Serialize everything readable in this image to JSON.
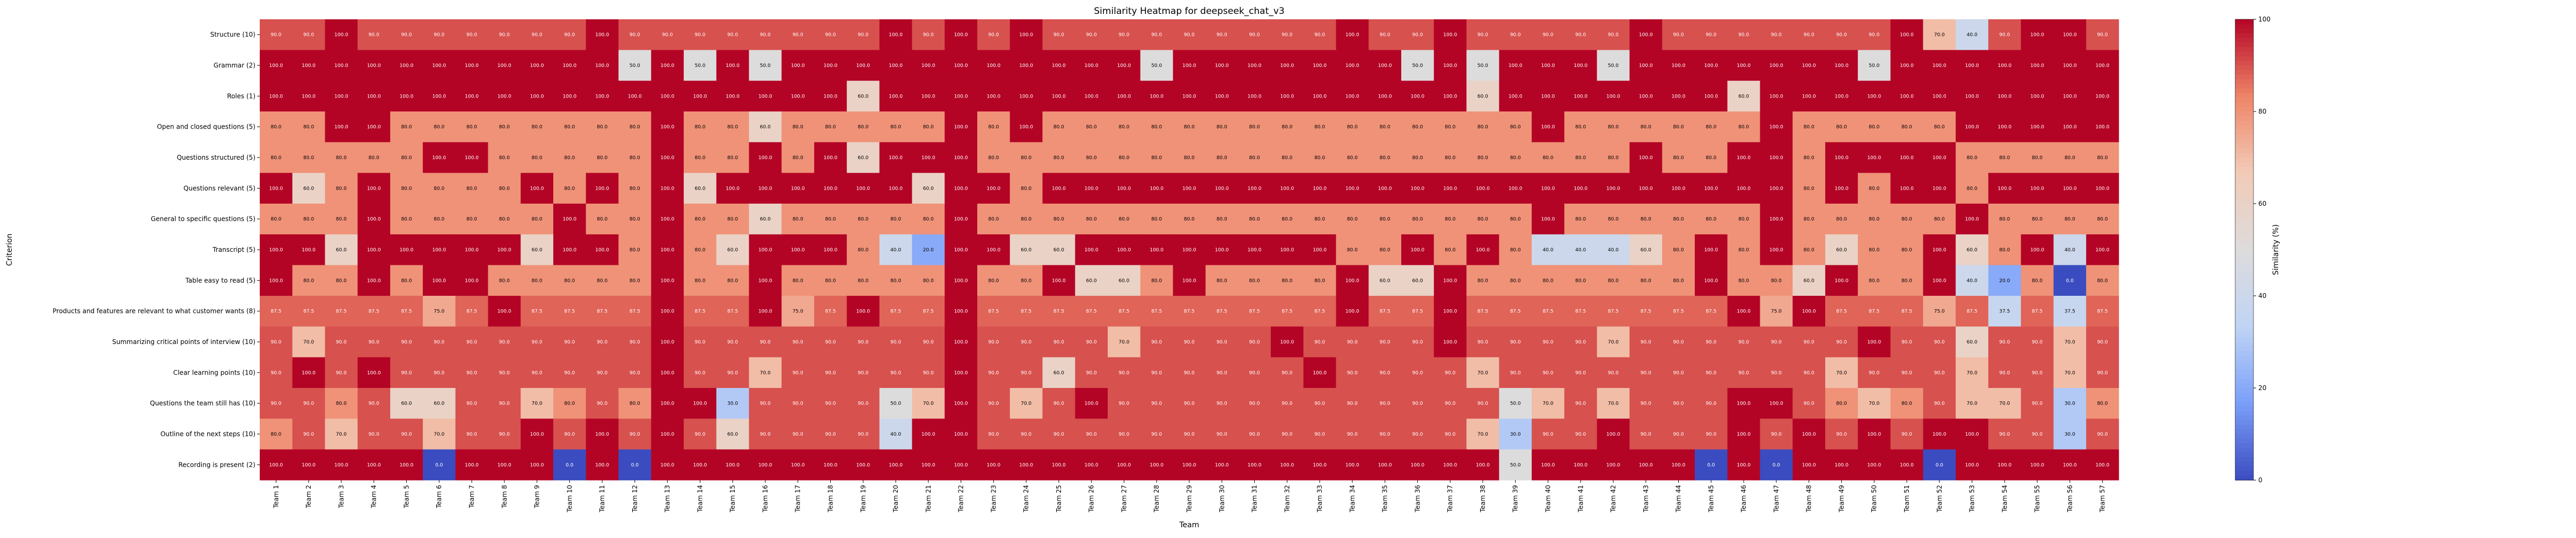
{
  "chart_data": {
    "type": "heatmap",
    "title": "Similarity Heatmap for deepseek_chat_v3",
    "xlabel": "Team",
    "ylabel": "Criterion",
    "colorbar_label": "Similarity (%)",
    "colorbar_ticks": [
      0,
      20,
      40,
      60,
      80,
      100
    ],
    "zlim": [
      0,
      100
    ],
    "colormap": "coolwarm",
    "cmap_stops": [
      "#3b4cc0",
      "#7b9ff9",
      "#c0d4f5",
      "#dddcdc",
      "#f2cbb7",
      "#ee8468",
      "#b40426"
    ],
    "rows": [
      "Structure (10)",
      "Grammar (2)",
      "Roles (1)",
      "Open and closed questions (5)",
      "Questions structured (5)",
      "Questions relevant (5)",
      "General to specific questions (5)",
      "Transcript (5)",
      "Table easy to read (5)",
      "Products and features are relevant to what customer wants (8)",
      "Summarizing critical points of interview (10)",
      "Clear learning points (10)",
      "Questions the team still has (10)",
      "Outline of the next steps (10)",
      "Recording is present (2)"
    ],
    "columns": [
      "Team 1",
      "Team 2",
      "Team 3",
      "Team 4",
      "Team 5",
      "Team 6",
      "Team 7",
      "Team 8",
      "Team 9",
      "Team 10",
      "Team 11",
      "Team 12",
      "Team 13",
      "Team 14",
      "Team 15",
      "Team 16",
      "Team 17",
      "Team 18",
      "Team 19",
      "Team 20",
      "Team 21",
      "Team 22",
      "Team 23",
      "Team 24",
      "Team 25",
      "Team 26",
      "Team 27",
      "Team 28",
      "Team 29",
      "Team 30",
      "Team 31",
      "Team 32",
      "Team 33",
      "Team 34",
      "Team 35",
      "Team 36",
      "Team 37",
      "Team 38",
      "Team 39",
      "Team 40",
      "Team 41",
      "Team 42",
      "Team 43",
      "Team 44",
      "Team 45",
      "Team 46",
      "Team 47",
      "Team 48",
      "Team 49",
      "Team 50",
      "Team 51",
      "Team 52",
      "Team 53",
      "Team 54",
      "Team 55",
      "Team 56",
      "Team 57"
    ],
    "values": [
      [
        90,
        90,
        100,
        90,
        90,
        90,
        90,
        90,
        90,
        90,
        100,
        90,
        90,
        90,
        90,
        90,
        90,
        90,
        90,
        100,
        90,
        100,
        90,
        100,
        90,
        90,
        90,
        90,
        90,
        90,
        90,
        90,
        90,
        100,
        90,
        90,
        100,
        90,
        90,
        90,
        90,
        90,
        100,
        90,
        90,
        90,
        90,
        90,
        90,
        90,
        100,
        70,
        40,
        90,
        100,
        100,
        90
      ],
      [
        100,
        100,
        100,
        100,
        100,
        100,
        100,
        100,
        100,
        100,
        100,
        50,
        100,
        50,
        100,
        50,
        100,
        100,
        100,
        100,
        100,
        100,
        100,
        100,
        100,
        100,
        100,
        50,
        100,
        100,
        100,
        100,
        100,
        100,
        100,
        50,
        100,
        50,
        100,
        100,
        100,
        50,
        100,
        100,
        100,
        100,
        100,
        100,
        100,
        50,
        100,
        100,
        100,
        100,
        100,
        100,
        100
      ],
      [
        100,
        100,
        100,
        100,
        100,
        100,
        100,
        100,
        100,
        100,
        100,
        100,
        100,
        100,
        100,
        100,
        100,
        100,
        60,
        100,
        100,
        100,
        100,
        100,
        100,
        100,
        100,
        100,
        100,
        100,
        100,
        100,
        100,
        100,
        100,
        100,
        100,
        60,
        100,
        100,
        100,
        100,
        100,
        100,
        100,
        60,
        100,
        100,
        100,
        100,
        100,
        100,
        100,
        100,
        100,
        100,
        100
      ],
      [
        80,
        80,
        100,
        100,
        80,
        80,
        80,
        80,
        80,
        80,
        80,
        80,
        100,
        80,
        80,
        60,
        80,
        80,
        80,
        80,
        80,
        100,
        80,
        100,
        80,
        80,
        80,
        80,
        80,
        80,
        80,
        80,
        80,
        80,
        80,
        80,
        80,
        80,
        80,
        100,
        80,
        80,
        80,
        80,
        80,
        80,
        100,
        80,
        80,
        80,
        80,
        80,
        100,
        100,
        100,
        100,
        100
      ],
      [
        80,
        80,
        80,
        80,
        80,
        100,
        100,
        80,
        80,
        80,
        80,
        80,
        100,
        80,
        80,
        100,
        80,
        100,
        60,
        100,
        100,
        100,
        80,
        80,
        80,
        80,
        80,
        80,
        80,
        80,
        80,
        80,
        80,
        80,
        80,
        80,
        80,
        80,
        80,
        80,
        80,
        80,
        100,
        80,
        80,
        100,
        100,
        80,
        100,
        100,
        100,
        100,
        80,
        80,
        80,
        80,
        80
      ],
      [
        100,
        60,
        80,
        100,
        80,
        80,
        80,
        80,
        100,
        80,
        100,
        80,
        100,
        60,
        100,
        100,
        100,
        100,
        100,
        100,
        60,
        100,
        100,
        80,
        100,
        100,
        100,
        100,
        100,
        100,
        100,
        100,
        100,
        100,
        100,
        100,
        100,
        100,
        100,
        100,
        100,
        100,
        100,
        100,
        100,
        100,
        100,
        80,
        100,
        80,
        100,
        100,
        80,
        100,
        100,
        100,
        100
      ],
      [
        80,
        80,
        80,
        100,
        80,
        80,
        80,
        80,
        80,
        100,
        80,
        80,
        100,
        80,
        80,
        60,
        80,
        80,
        80,
        80,
        80,
        100,
        80,
        80,
        80,
        80,
        80,
        80,
        80,
        80,
        80,
        80,
        80,
        80,
        80,
        80,
        80,
        80,
        80,
        100,
        80,
        80,
        80,
        80,
        80,
        80,
        100,
        80,
        80,
        80,
        80,
        80,
        100,
        80,
        80,
        80,
        80
      ],
      [
        100,
        100,
        60,
        100,
        100,
        100,
        100,
        100,
        60,
        100,
        100,
        80,
        100,
        80,
        60,
        100,
        100,
        100,
        80,
        40,
        20,
        100,
        100,
        60,
        60,
        100,
        100,
        100,
        100,
        100,
        100,
        100,
        100,
        80,
        80,
        100,
        80,
        100,
        80,
        40,
        40,
        40,
        60,
        80,
        100,
        80,
        100,
        80,
        60,
        80,
        80,
        100,
        60,
        80,
        100,
        40,
        100
      ],
      [
        100,
        80,
        80,
        100,
        80,
        100,
        100,
        80,
        80,
        80,
        80,
        80,
        100,
        80,
        80,
        100,
        80,
        80,
        80,
        80,
        80,
        100,
        80,
        80,
        100,
        60,
        60,
        80,
        100,
        80,
        80,
        80,
        80,
        100,
        60,
        60,
        100,
        80,
        80,
        80,
        80,
        80,
        80,
        80,
        100,
        80,
        80,
        60,
        100,
        80,
        80,
        100,
        40,
        20,
        80,
        0,
        80
      ],
      [
        87.5,
        87.5,
        87.5,
        87.5,
        87.5,
        75,
        87.5,
        100,
        87.5,
        87.5,
        87.5,
        87.5,
        100,
        87.5,
        87.5,
        100,
        75,
        87.5,
        100,
        87.5,
        87.5,
        100,
        87.5,
        87.5,
        87.5,
        87.5,
        87.5,
        87.5,
        87.5,
        87.5,
        87.5,
        87.5,
        87.5,
        100,
        87.5,
        87.5,
        100,
        87.5,
        87.5,
        87.5,
        87.5,
        87.5,
        87.5,
        87.5,
        87.5,
        100,
        75,
        100,
        87.5,
        87.5,
        87.5,
        75,
        87.5,
        37.5,
        87.5,
        37.5,
        87.5
      ],
      [
        90,
        70,
        90,
        90,
        90,
        90,
        90,
        90,
        90,
        90,
        90,
        90,
        100,
        90,
        90,
        90,
        90,
        90,
        90,
        90,
        90,
        100,
        90,
        90,
        90,
        90,
        70,
        90,
        90,
        90,
        90,
        100,
        90,
        90,
        90,
        90,
        100,
        90,
        90,
        90,
        90,
        70,
        90,
        90,
        90,
        90,
        90,
        90,
        90,
        100,
        90,
        90,
        60,
        90,
        90,
        70,
        90
      ],
      [
        90,
        100,
        90,
        100,
        90,
        90,
        90,
        90,
        90,
        90,
        90,
        90,
        100,
        90,
        90,
        70,
        90,
        90,
        90,
        90,
        90,
        100,
        90,
        90,
        60,
        90,
        90,
        90,
        90,
        90,
        90,
        90,
        100,
        90,
        90,
        90,
        90,
        70,
        90,
        90,
        90,
        90,
        90,
        90,
        90,
        90,
        90,
        90,
        70,
        90,
        90,
        90,
        70,
        90,
        90,
        70,
        90
      ],
      [
        90,
        90,
        80,
        90,
        60,
        60,
        90,
        90,
        70,
        80,
        90,
        80,
        100,
        100,
        30,
        90,
        90,
        90,
        90,
        50,
        70,
        100,
        90,
        70,
        90,
        100,
        90,
        90,
        90,
        90,
        90,
        90,
        90,
        90,
        90,
        90,
        90,
        90,
        50,
        70,
        90,
        70,
        90,
        90,
        90,
        100,
        100,
        90,
        80,
        70,
        80,
        90,
        70,
        70,
        90,
        30,
        80
      ],
      [
        80,
        90,
        70,
        90,
        90,
        70,
        90,
        90,
        100,
        90,
        100,
        90,
        100,
        90,
        60,
        90,
        90,
        90,
        90,
        40,
        100,
        100,
        90,
        90,
        90,
        90,
        90,
        90,
        90,
        90,
        90,
        90,
        90,
        90,
        90,
        90,
        90,
        70,
        30,
        90,
        90,
        100,
        90,
        90,
        90,
        100,
        90,
        100,
        90,
        100,
        90,
        100,
        100,
        90,
        90,
        30,
        90
      ],
      [
        100,
        100,
        100,
        100,
        100,
        0,
        100,
        100,
        100,
        0,
        100,
        0,
        100,
        100,
        100,
        100,
        100,
        100,
        100,
        100,
        100,
        100,
        100,
        100,
        100,
        100,
        100,
        100,
        100,
        100,
        100,
        100,
        100,
        100,
        100,
        100,
        100,
        100,
        50,
        100,
        100,
        100,
        100,
        100,
        0,
        100,
        0,
        100,
        100,
        100,
        100,
        0,
        100,
        100,
        100,
        100,
        100
      ]
    ]
  }
}
